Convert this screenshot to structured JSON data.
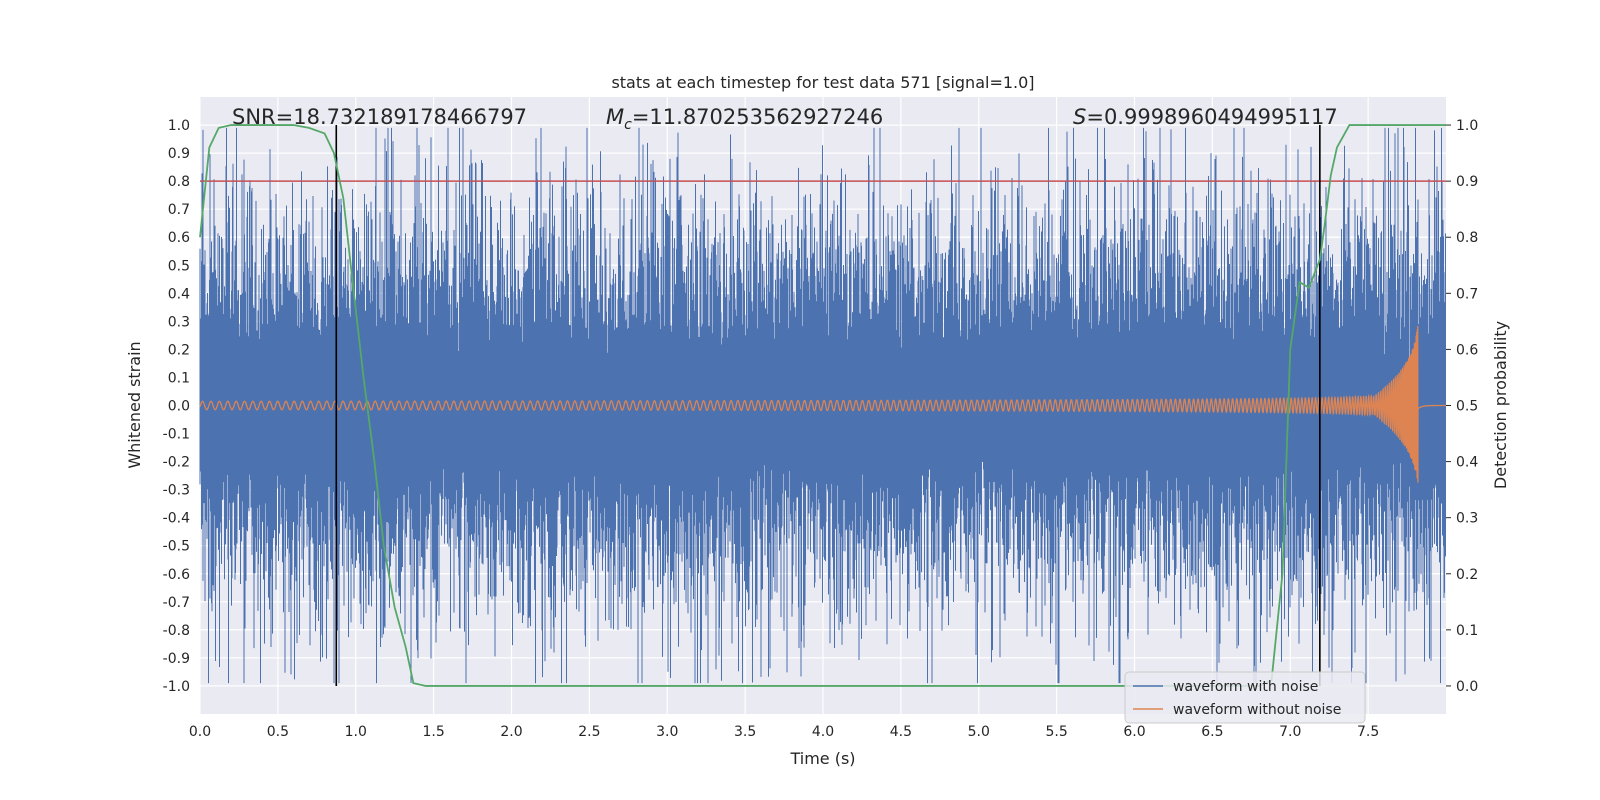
{
  "chart_data": {
    "type": "line",
    "title": "stats at each timestep for test data 571 [signal=1.0]",
    "xlabel": "Time (s)",
    "ylabel": "Whitened strain",
    "y2label": "Detection probability",
    "xlim": [
      0.0,
      8.0
    ],
    "ylim": [
      -1.1,
      1.1
    ],
    "y2lim": [
      -0.05,
      1.05
    ],
    "xticks": [
      "0.0",
      "0.5",
      "1.0",
      "1.5",
      "2.0",
      "2.5",
      "3.0",
      "3.5",
      "4.0",
      "4.5",
      "5.0",
      "5.5",
      "6.0",
      "6.5",
      "7.0",
      "7.5"
    ],
    "yticks": [
      "1.0",
      "0.9",
      "0.8",
      "0.7",
      "0.6",
      "0.5",
      "0.4",
      "0.3",
      "0.2",
      "0.1",
      "0.0",
      "-0.1",
      "-0.2",
      "-0.3",
      "-0.4",
      "-0.5",
      "-0.6",
      "-0.7",
      "-0.8",
      "-0.9",
      "-1.0"
    ],
    "y2ticks": [
      "1.0",
      "0.9",
      "0.8",
      "0.7",
      "0.6",
      "0.5",
      "0.4",
      "0.3",
      "0.2",
      "0.1",
      "0.0"
    ],
    "annotations": {
      "snr": "SNR=18.732189178466797",
      "mc_symbol": "M",
      "mc_sub": "c",
      "mc_value": "=11.870253562927246",
      "s_symbol": "S",
      "s_value": "=0.9998960494995117"
    },
    "threshold": {
      "y2": 0.9,
      "color": "#c44e52"
    },
    "vlines": [
      0.875,
      7.19
    ],
    "merger_time": 7.82,
    "noise_amplitude": 0.58,
    "series": [
      {
        "name": "waveform with noise",
        "color": "#4c72b0"
      },
      {
        "name": "waveform without noise",
        "color": "#dd8452"
      },
      {
        "color": "#55a868",
        "axis": "y2",
        "x": [
          0.0,
          0.06,
          0.12,
          0.2,
          0.3,
          0.4,
          0.5,
          0.6,
          0.7,
          0.8,
          0.86,
          0.92,
          0.98,
          1.05,
          1.12,
          1.18,
          1.25,
          1.32,
          1.37,
          1.45,
          1.6,
          2.0,
          3.0,
          4.0,
          5.0,
          6.0,
          6.5,
          6.8,
          6.88,
          6.95,
          7.0,
          7.06,
          7.12,
          7.19,
          7.22,
          7.26,
          7.3,
          7.38,
          7.5,
          7.7,
          8.0
        ],
        "values": [
          0.8,
          0.96,
          0.995,
          1.0,
          1.0,
          1.0,
          1.0,
          1.0,
          0.995,
          0.985,
          0.95,
          0.87,
          0.72,
          0.55,
          0.4,
          0.25,
          0.14,
          0.07,
          0.005,
          0.0,
          0.0,
          0.0,
          0.0,
          0.0,
          0.0,
          0.0,
          0.0,
          0.0,
          0.01,
          0.2,
          0.6,
          0.72,
          0.71,
          0.76,
          0.82,
          0.91,
          0.96,
          1.0,
          1.0,
          1.0,
          1.0
        ]
      }
    ],
    "legend_loc": "lower-right"
  }
}
